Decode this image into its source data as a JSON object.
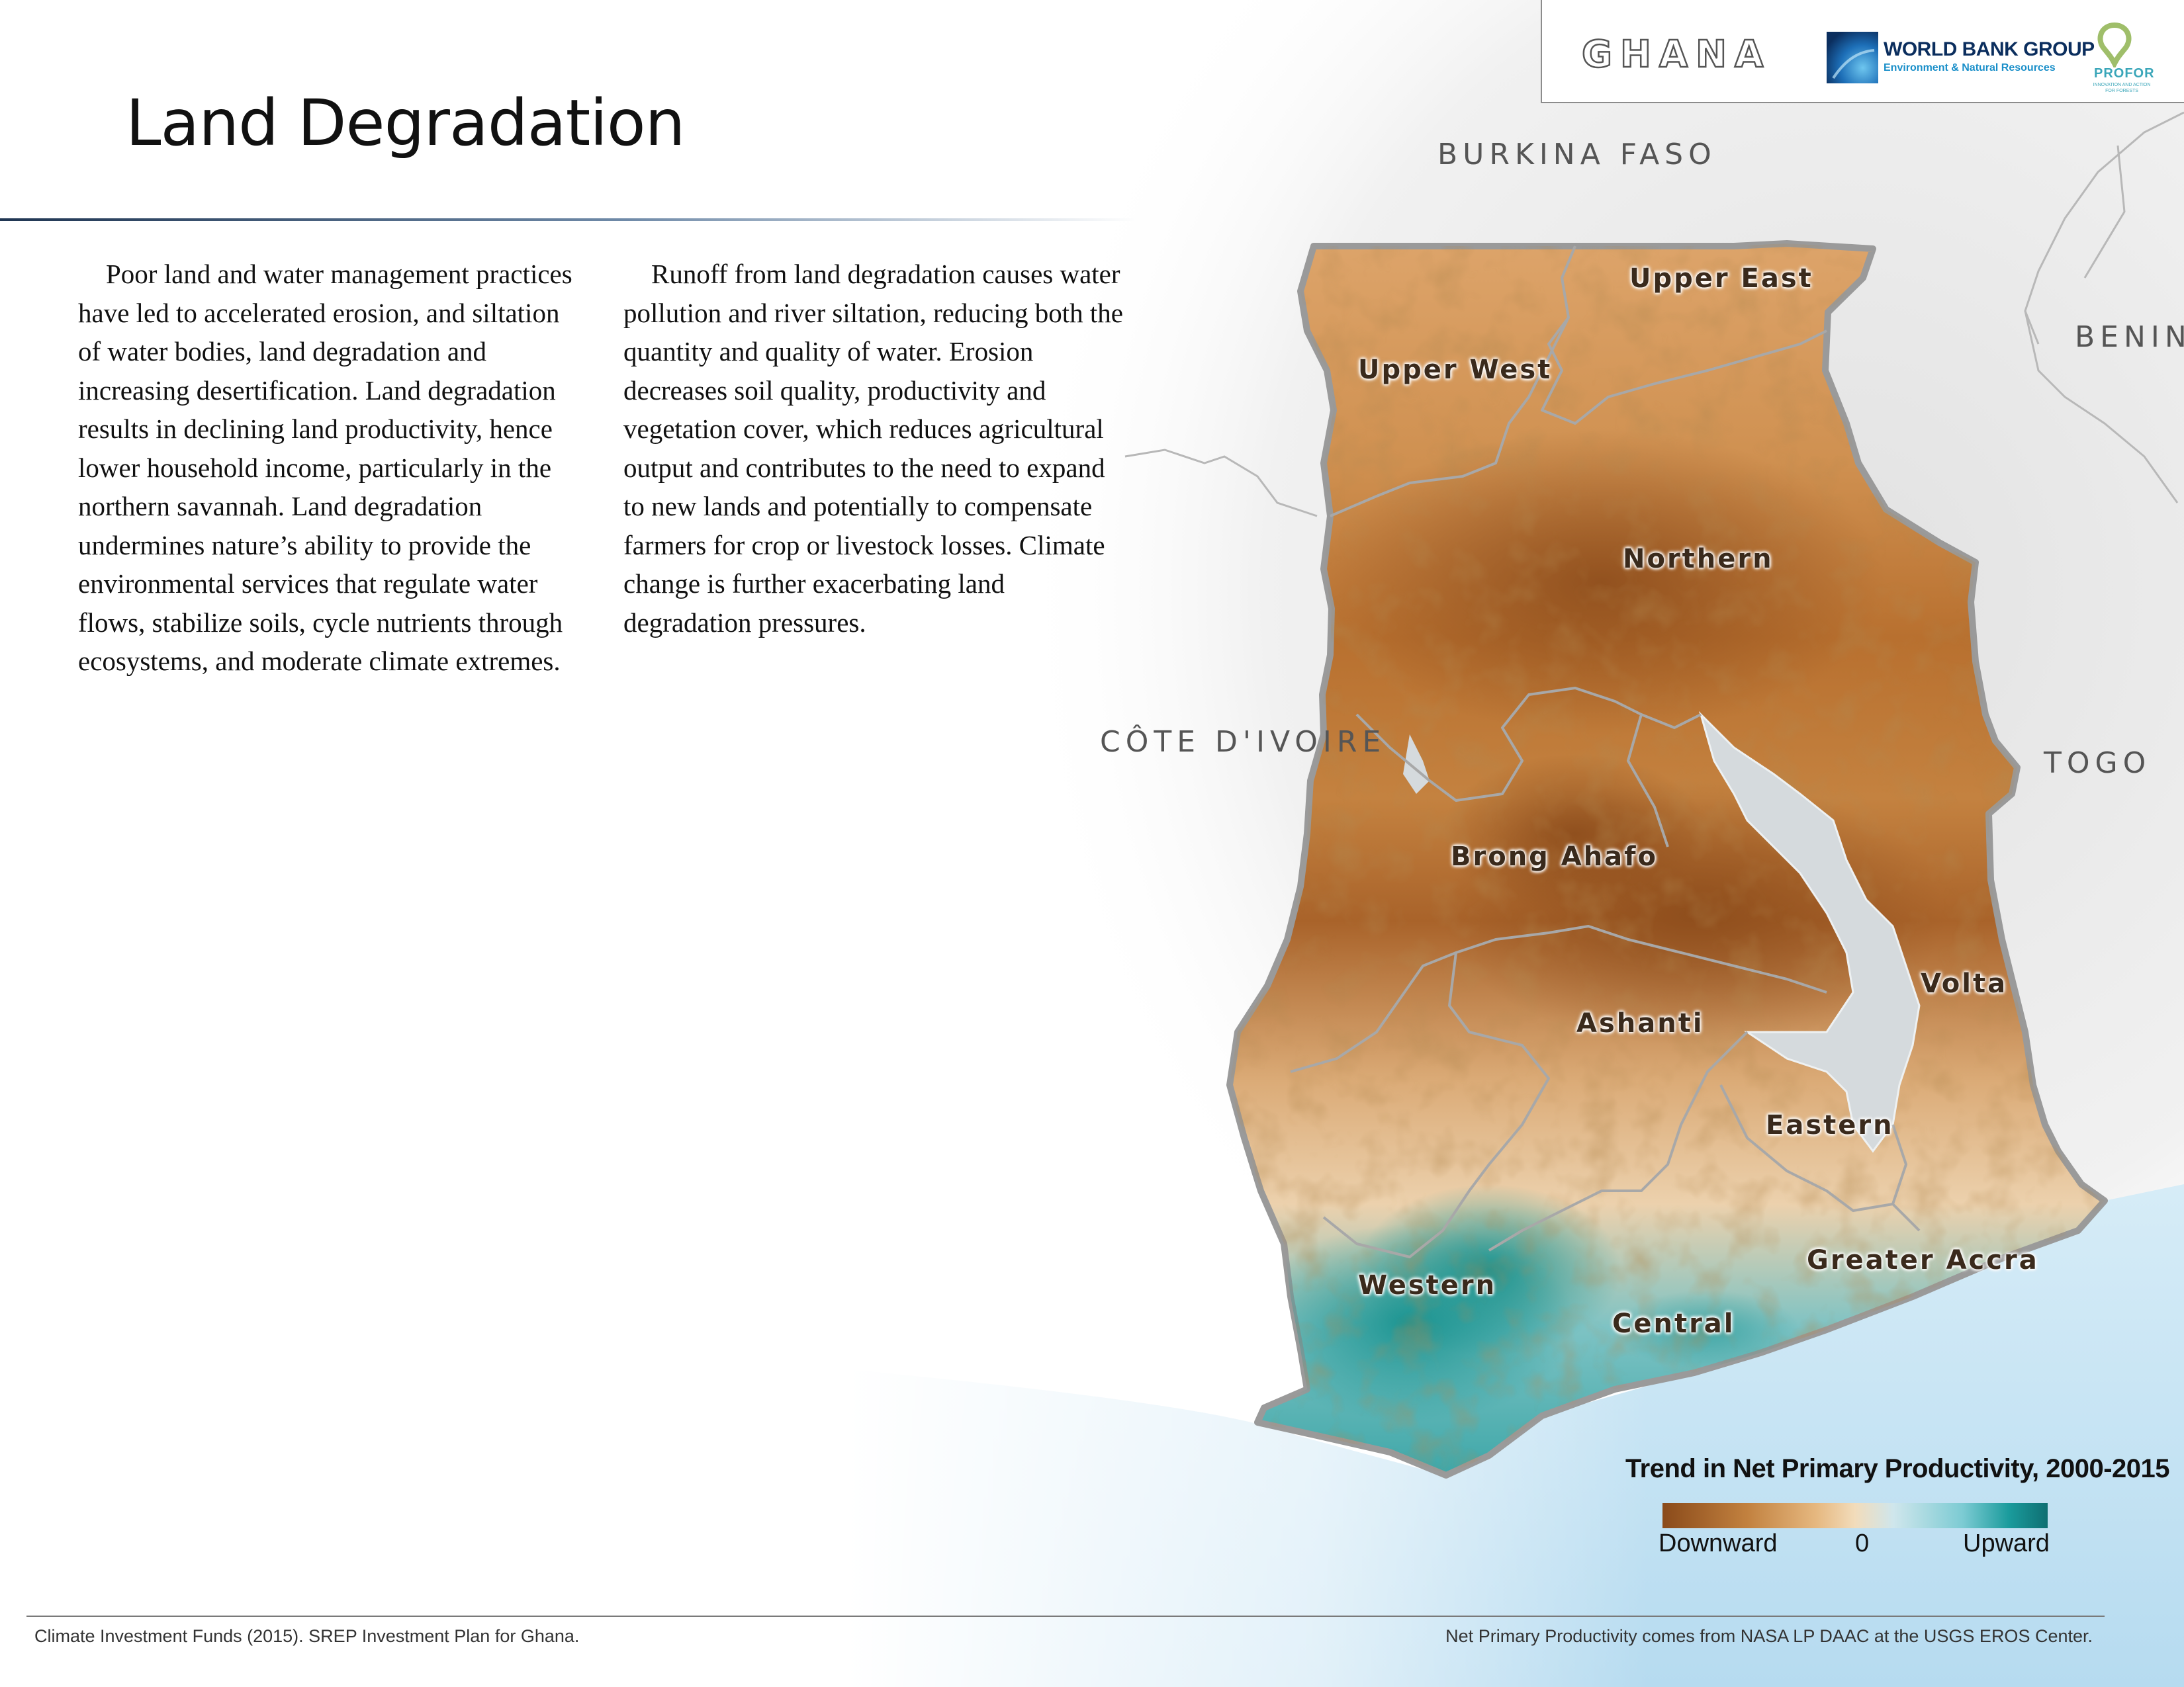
{
  "header": {
    "country": "GHANA",
    "world_bank": "WORLD BANK GROUP",
    "world_bank_sub": "Environment & Natural Resources",
    "profor": "PROFOR",
    "profor_tagline": "INNOVATION AND ACTION FOR FORESTS"
  },
  "title": "Land Degradation",
  "paragraphs": [
    "Poor land and water management practices have led to accelerated erosion, and siltation of water bodies, land degradation and increasing desertification. Land degradation results in declining land productivity, hence lower household income, particularly in the northern savannah. Land degradation undermines nature’s ability to provide the environmental services that regulate water flows, stabilize soils, cycle nutrients through ecosystems, and moderate climate extremes.",
    "Runoff from land degradation causes water pollution and river siltation, reducing both the quantity and quality of water. Erosion decreases soil quality, productivity and vegetation cover, which reduces agricultural output and contributes to the need to expand to new lands and potentially to compensate farmers for crop or livestock losses. Climate change is further exacerbating land degradation pressures."
  ],
  "map": {
    "neighbors": {
      "burkina": "BURKINA FASO",
      "benin": "BENIN",
      "togo": "TOGO",
      "ivoire": "CÔTE D'IVOIRE"
    },
    "regions": {
      "upper_east": "Upper East",
      "upper_west": "Upper West",
      "northern": "Northern",
      "brong_ahafo": "Brong Ahafo",
      "ashanti": "Ashanti",
      "volta": "Volta",
      "eastern": "Eastern",
      "greater_accra": "Greater Accra",
      "western": "Western",
      "central": "Central"
    },
    "colors": {
      "downward": "#8a4a1a",
      "neutral": "#f2dcbb",
      "upward": "#0f6f72",
      "water": "#cfe7f4",
      "lake": "#d5dadd"
    }
  },
  "legend": {
    "title": "Trend in Net Primary Productivity, 2000-2015",
    "low": "Downward",
    "mid": "0",
    "high": "Upward"
  },
  "footer": {
    "left": "Climate Investment Funds (2015). SREP Investment Plan for Ghana.",
    "right": "Net Primary Productivity comes from NASA LP DAAC at the USGS EROS Center."
  }
}
